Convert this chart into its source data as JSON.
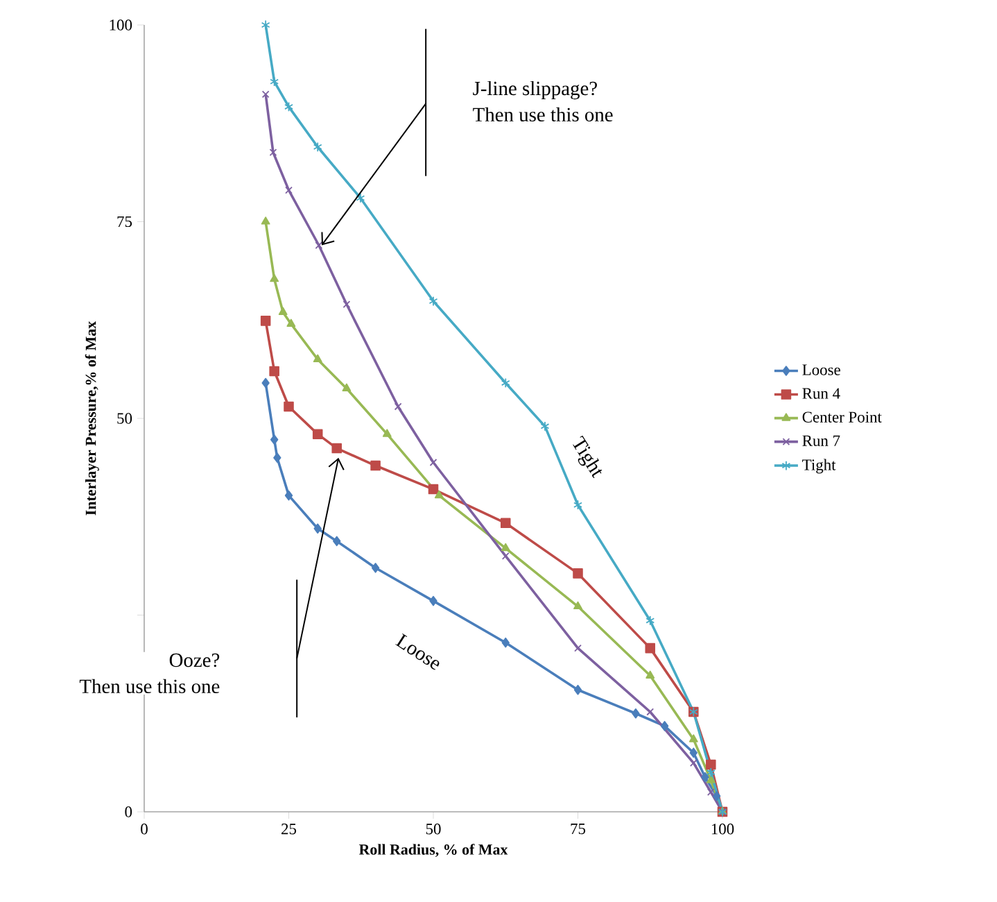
{
  "chart_data": {
    "type": "line",
    "xlabel": "Roll Radius, % of Max",
    "ylabel": "Interlayer Pressure,% of Max",
    "xlim": [
      0,
      100
    ],
    "ylim": [
      0,
      100
    ],
    "xticks": [
      0,
      25,
      50,
      75,
      100
    ],
    "yticks": [
      0,
      {
        "value": 25,
        "label": null
      },
      50,
      75,
      100
    ],
    "grid": false,
    "legend": "right",
    "line_style": "solid",
    "series": [
      {
        "name": "Loose",
        "color": "#4a7ebb",
        "marker": "diamond",
        "x": [
          21,
          22.5,
          23,
          25,
          30,
          33.3,
          40,
          50,
          62.5,
          75,
          85,
          90,
          95,
          97,
          99,
          100
        ],
        "values": [
          54.5,
          47.3,
          45,
          40.2,
          36,
          34.4,
          31,
          26.8,
          21.5,
          15.5,
          12.5,
          10.9,
          7.5,
          4.4,
          2,
          0
        ]
      },
      {
        "name": "Run 4",
        "color": "#be4b48",
        "marker": "square",
        "x": [
          21,
          22.5,
          25,
          30,
          33.3,
          40,
          50,
          62.5,
          75,
          87.5,
          95,
          98,
          100
        ],
        "values": [
          62.4,
          56,
          51.5,
          48,
          46.2,
          44,
          41,
          36.7,
          30.3,
          20.8,
          12.7,
          6,
          0
        ]
      },
      {
        "name": "Center Point",
        "color": "#98b954",
        "marker": "triangle",
        "x": [
          21,
          22.5,
          24,
          25.4,
          30,
          35,
          42,
          51,
          62.5,
          75,
          87.5,
          95,
          98,
          100
        ],
        "values": [
          75,
          67.7,
          63.5,
          62,
          57.5,
          53.8,
          48,
          40.2,
          33.5,
          26.1,
          17.3,
          9.2,
          4,
          0
        ]
      },
      {
        "name": "Run 7",
        "color": "#7d60a0",
        "marker": "cross",
        "x": [
          21,
          22.3,
          25,
          30.2,
          35,
          43.9,
          50,
          62.5,
          75,
          87.5,
          95,
          98,
          100
        ],
        "values": [
          91.2,
          83.8,
          79,
          72,
          64.5,
          51.5,
          44.4,
          32.5,
          20.8,
          12.7,
          6.2,
          2.5,
          0
        ]
      },
      {
        "name": "Tight",
        "color": "#46aac5",
        "marker": "cross",
        "x": [
          21,
          22.5,
          25,
          30,
          37.4,
          50,
          62.5,
          69.3,
          75,
          87.5,
          95,
          98,
          100
        ],
        "values": [
          100,
          92.8,
          89.6,
          84.5,
          78,
          64.9,
          54.5,
          49,
          39,
          24.3,
          12.7,
          5,
          0
        ]
      }
    ],
    "annotations": [
      "J-line slippage?",
      "Then use this one",
      "Ooze?",
      "Then use this one",
      "Tight",
      "Loose"
    ]
  }
}
